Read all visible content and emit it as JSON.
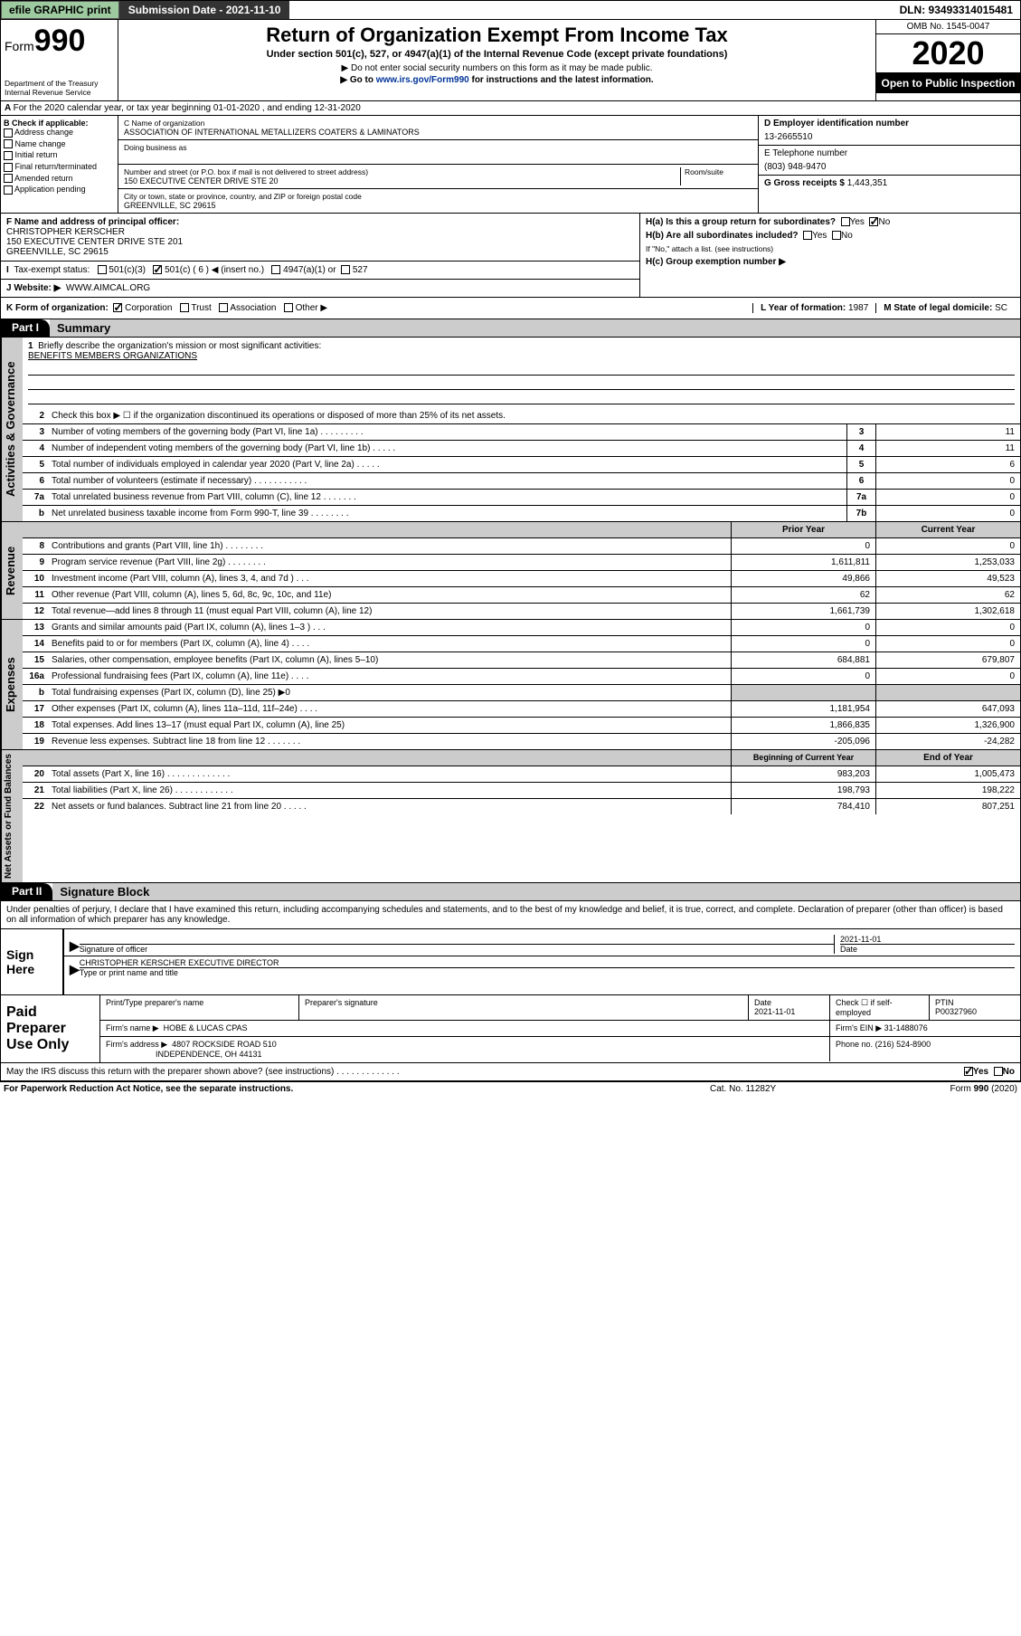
{
  "topbar": {
    "efile": "efile GRAPHIC print",
    "submission_label": "Submission Date - 2021-11-10",
    "dln": "DLN: 93493314015481"
  },
  "header": {
    "form_label": "Form",
    "form_number": "990",
    "dept": "Department of the Treasury",
    "irs": "Internal Revenue Service",
    "title": "Return of Organization Exempt From Income Tax",
    "subtitle": "Under section 501(c), 527, or 4947(a)(1) of the Internal Revenue Code (except private foundations)",
    "note1": "▶ Do not enter social security numbers on this form as it may be made public.",
    "note2_pre": "▶ Go to ",
    "note2_link": "www.irs.gov/Form990",
    "note2_post": " for instructions and the latest information.",
    "omb": "OMB No. 1545-0047",
    "year": "2020",
    "open": "Open to Public Inspection"
  },
  "line_a": "For the 2020 calendar year, or tax year beginning 01-01-2020   , and ending 12-31-2020",
  "box_b": {
    "label": "B Check if applicable:",
    "opts": [
      "Address change",
      "Name change",
      "Initial return",
      "Final return/terminated",
      "Amended return",
      "Application pending"
    ]
  },
  "box_c": {
    "label_name": "C Name of organization",
    "name": "ASSOCIATION OF INTERNATIONAL METALLIZERS COATERS & LAMINATORS",
    "dba_label": "Doing business as",
    "addr_label": "Number and street (or P.O. box if mail is not delivered to street address)",
    "room_label": "Room/suite",
    "addr": "150 EXECUTIVE CENTER DRIVE STE 20",
    "city_label": "City or town, state or province, country, and ZIP or foreign postal code",
    "city": "GREENVILLE, SC  29615"
  },
  "box_d": {
    "label": "D Employer identification number",
    "value": "13-2665510"
  },
  "box_e": {
    "label": "E Telephone number",
    "value": "(803) 948-9470"
  },
  "box_g": {
    "label": "G Gross receipts $",
    "value": "1,443,351"
  },
  "box_f": {
    "label": "F Name and address of principal officer:",
    "name": "CHRISTOPHER KERSCHER",
    "addr": "150 EXECUTIVE CENTER DRIVE STE 201",
    "city": "GREENVILLE, SC  29615"
  },
  "box_h": {
    "a": "H(a)  Is this a group return for subordinates?",
    "a_yes": "Yes",
    "a_no": "No",
    "b": "H(b)  Are all subordinates included?",
    "b_note": "If \"No,\" attach a list. (see instructions)",
    "c": "H(c)  Group exemption number ▶"
  },
  "box_i": {
    "label": "Tax-exempt status:",
    "c3": "501(c)(3)",
    "c": "501(c) ( 6 ) ◀ (insert no.)",
    "a4947": "4947(a)(1) or",
    "s527": "527"
  },
  "box_j": {
    "label": "J   Website: ▶",
    "value": "WWW.AIMCAL.ORG"
  },
  "box_k": {
    "label": "K Form of organization:",
    "opts": [
      "Corporation",
      "Trust",
      "Association",
      "Other ▶"
    ],
    "l_label": "L Year of formation:",
    "l_val": "1987",
    "m_label": "M State of legal domicile:",
    "m_val": "SC"
  },
  "part1": {
    "label": "Part I",
    "title": "Summary",
    "side_gov": "Activities & Governance",
    "side_rev": "Revenue",
    "side_exp": "Expenses",
    "side_net": "Net Assets or Fund Balances",
    "q1": "Briefly describe the organization's mission or most significant activities:",
    "mission": "BENEFITS MEMBERS ORGANIZATIONS",
    "q2": "Check this box ▶ ☐  if the organization discontinued its operations or disposed of more than 25% of its net assets.",
    "rows_gov": [
      {
        "n": "3",
        "t": "Number of voting members of the governing body (Part VI, line 1a)  .    .    .    .    .    .    .    .    .",
        "box": "3",
        "v": "11"
      },
      {
        "n": "4",
        "t": "Number of independent voting members of the governing body (Part VI, line 1b)  .    .    .    .    .",
        "box": "4",
        "v": "11"
      },
      {
        "n": "5",
        "t": "Total number of individuals employed in calendar year 2020 (Part V, line 2a)  .    .    .    .    .",
        "box": "5",
        "v": "6"
      },
      {
        "n": "6",
        "t": "Total number of volunteers (estimate if necessary)  .    .    .    .    .    .    .    .    .    .    .",
        "box": "6",
        "v": "0"
      },
      {
        "n": "7a",
        "t": "Total unrelated business revenue from Part VIII, column (C), line 12  .    .    .    .    .    .    .",
        "box": "7a",
        "v": "0"
      },
      {
        "n": "b",
        "t": "Net unrelated business taxable income from Form 990-T, line 39  .    .    .    .    .    .    .    .",
        "box": "7b",
        "v": "0"
      }
    ],
    "hdr_prior": "Prior Year",
    "hdr_curr": "Current Year",
    "rows_rev": [
      {
        "n": "8",
        "t": "Contributions and grants (Part VIII, line 1h)  .    .    .    .    .    .    .    .",
        "p": "0",
        "c": "0"
      },
      {
        "n": "9",
        "t": "Program service revenue (Part VIII, line 2g)  .    .    .    .    .    .    .    .",
        "p": "1,611,811",
        "c": "1,253,033"
      },
      {
        "n": "10",
        "t": "Investment income (Part VIII, column (A), lines 3, 4, and 7d )  .    .    .",
        "p": "49,866",
        "c": "49,523"
      },
      {
        "n": "11",
        "t": "Other revenue (Part VIII, column (A), lines 5, 6d, 8c, 9c, 10c, and 11e)",
        "p": "62",
        "c": "62"
      },
      {
        "n": "12",
        "t": "Total revenue—add lines 8 through 11 (must equal Part VIII, column (A), line 12)",
        "p": "1,661,739",
        "c": "1,302,618"
      }
    ],
    "rows_exp": [
      {
        "n": "13",
        "t": "Grants and similar amounts paid (Part IX, column (A), lines 1–3 )  .    .    .",
        "p": "0",
        "c": "0"
      },
      {
        "n": "14",
        "t": "Benefits paid to or for members (Part IX, column (A), line 4)  .    .    .    .",
        "p": "0",
        "c": "0"
      },
      {
        "n": "15",
        "t": "Salaries, other compensation, employee benefits (Part IX, column (A), lines 5–10)",
        "p": "684,881",
        "c": "679,807"
      },
      {
        "n": "16a",
        "t": "Professional fundraising fees (Part IX, column (A), line 11e)  .    .    .    .",
        "p": "0",
        "c": "0"
      },
      {
        "n": "b",
        "t": "Total fundraising expenses (Part IX, column (D), line 25) ▶0",
        "p": "",
        "c": "",
        "shade": true
      },
      {
        "n": "17",
        "t": "Other expenses (Part IX, column (A), lines 11a–11d, 11f–24e)  .    .    .    .",
        "p": "1,181,954",
        "c": "647,093"
      },
      {
        "n": "18",
        "t": "Total expenses. Add lines 13–17 (must equal Part IX, column (A), line 25)",
        "p": "1,866,835",
        "c": "1,326,900"
      },
      {
        "n": "19",
        "t": "Revenue less expenses. Subtract line 18 from line 12  .    .    .    .    .    .    .",
        "p": "-205,096",
        "c": "-24,282"
      }
    ],
    "hdr_boy": "Beginning of Current Year",
    "hdr_eoy": "End of Year",
    "rows_net": [
      {
        "n": "20",
        "t": "Total assets (Part X, line 16)  .    .    .    .    .    .    .    .    .    .    .    .    .",
        "p": "983,203",
        "c": "1,005,473"
      },
      {
        "n": "21",
        "t": "Total liabilities (Part X, line 26)  .    .    .    .    .    .    .    .    .    .    .    .",
        "p": "198,793",
        "c": "198,222"
      },
      {
        "n": "22",
        "t": "Net assets or fund balances. Subtract line 21 from line 20  .    .    .    .    .",
        "p": "784,410",
        "c": "807,251"
      }
    ]
  },
  "part2": {
    "label": "Part II",
    "title": "Signature Block",
    "penalty": "Under penalties of perjury, I declare that I have examined this return, including accompanying schedules and statements, and to the best of my knowledge and belief, it is true, correct, and complete. Declaration of preparer (other than officer) is based on all information of which preparer has any knowledge.",
    "sign_here": "Sign Here",
    "sig_officer": "Signature of officer",
    "sig_date": "2021-11-01",
    "date_label": "Date",
    "officer_name": "CHRISTOPHER KERSCHER  EXECUTIVE DIRECTOR",
    "type_label": "Type or print name and title",
    "paid": "Paid Preparer Use Only",
    "prep_name_label": "Print/Type preparer's name",
    "prep_sig_label": "Preparer's signature",
    "prep_date_label": "Date",
    "prep_date": "2021-11-01",
    "check_self": "Check ☐ if self-employed",
    "ptin_label": "PTIN",
    "ptin": "P00327960",
    "firm_name_label": "Firm's name    ▶",
    "firm_name": "HOBE & LUCAS CPAS",
    "firm_ein_label": "Firm's EIN ▶",
    "firm_ein": "31-1488076",
    "firm_addr_label": "Firm's address ▶",
    "firm_addr1": "4807 ROCKSIDE ROAD 510",
    "firm_addr2": "INDEPENDENCE, OH  44131",
    "phone_label": "Phone no.",
    "phone": "(216) 524-8900",
    "discuss": "May the IRS discuss this return with the preparer shown above? (see instructions)  .    .    .    .    .    .    .    .    .    .    .    .    .",
    "discuss_yes": "Yes",
    "discuss_no": "No"
  },
  "footer": {
    "pra": "For Paperwork Reduction Act Notice, see the separate instructions.",
    "cat": "Cat. No. 11282Y",
    "form": "Form 990 (2020)"
  }
}
